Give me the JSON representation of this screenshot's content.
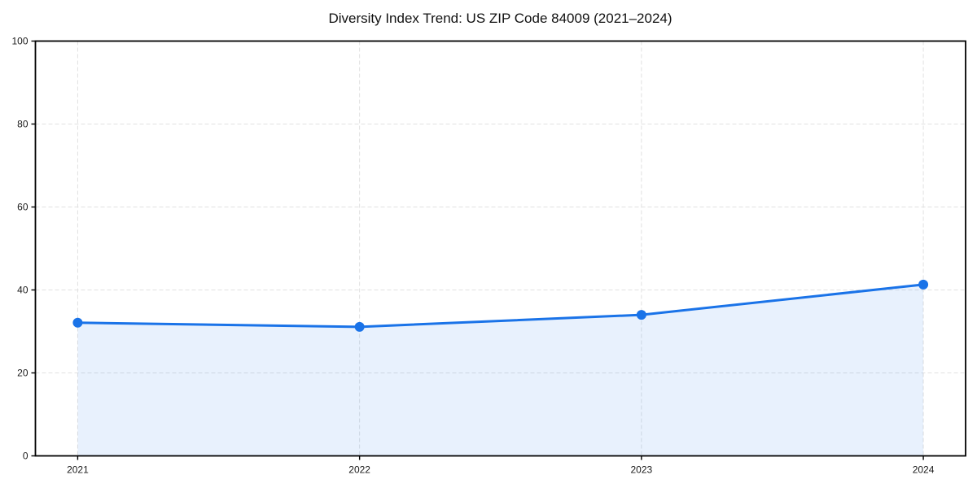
{
  "chart_data": {
    "type": "area",
    "title": "Diversity Index Trend: US ZIP Code 84009 (2021–2024)",
    "x": [
      "2021",
      "2022",
      "2023",
      "2024"
    ],
    "series": [
      {
        "name": "Diversity Index",
        "values": [
          32.1,
          31.1,
          34.0,
          41.3
        ]
      }
    ],
    "xlabel": "",
    "ylabel": "",
    "ylim": [
      0,
      100
    ],
    "yticks": [
      0,
      20,
      40,
      60,
      80,
      100
    ],
    "grid": "dashed-both-axes",
    "legend": "none",
    "colors": {
      "line": "#1a73e8",
      "marker": "#1a73e8",
      "fill": "rgba(26,115,232,0.10)",
      "grid": "#e1e1e1",
      "axis": "#000000",
      "tick_label": "#1a1a1a",
      "title": "#111111",
      "background": "#ffffff"
    }
  }
}
